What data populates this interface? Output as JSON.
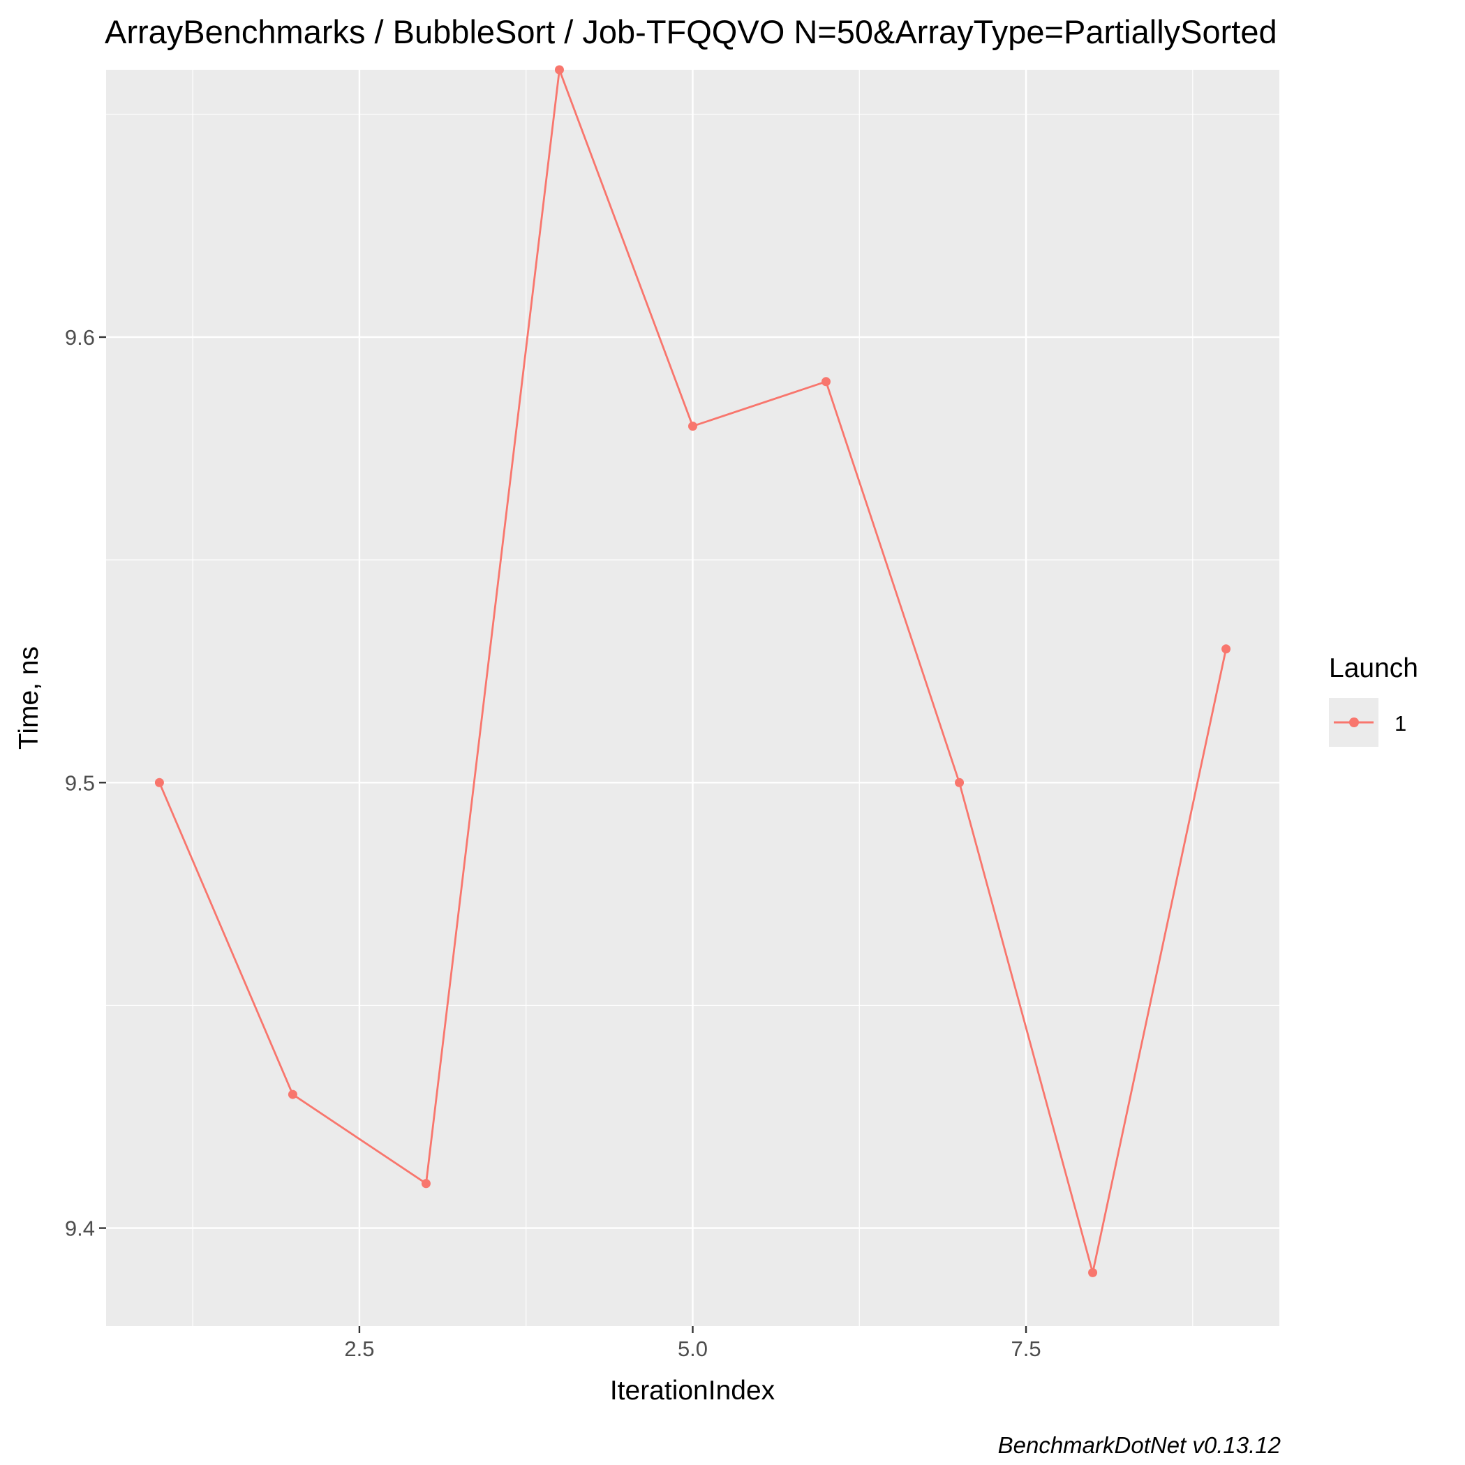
{
  "chart_data": {
    "type": "line",
    "title": "ArrayBenchmarks / BubbleSort / Job-TFQQVO N=50&ArrayType=PartiallySorted",
    "xlabel": "IterationIndex",
    "ylabel": "Time, ns",
    "caption": "BenchmarkDotNet v0.13.12",
    "xlim": [
      0.6,
      9.4
    ],
    "ylim": [
      9.378,
      9.66
    ],
    "x_ticks": [
      2.5,
      5.0,
      7.5
    ],
    "x_tick_labels": [
      "2.5",
      "5.0",
      "7.5"
    ],
    "x_minor_ticks": [
      1.25,
      3.75,
      6.25,
      8.75
    ],
    "y_ticks": [
      9.4,
      9.5,
      9.6
    ],
    "y_tick_labels": [
      "9.4",
      "9.5",
      "9.6"
    ],
    "y_minor_ticks": [
      9.45,
      9.55,
      9.65
    ],
    "grid": true,
    "legend": {
      "title": "Launch",
      "position": "right"
    },
    "series": [
      {
        "name": "1",
        "color": "#F8766D",
        "x": [
          1,
          2,
          3,
          4,
          5,
          6,
          7,
          8,
          9
        ],
        "y": [
          9.5,
          9.43,
          9.41,
          9.66,
          9.58,
          9.59,
          9.5,
          9.39,
          9.53
        ]
      }
    ]
  }
}
